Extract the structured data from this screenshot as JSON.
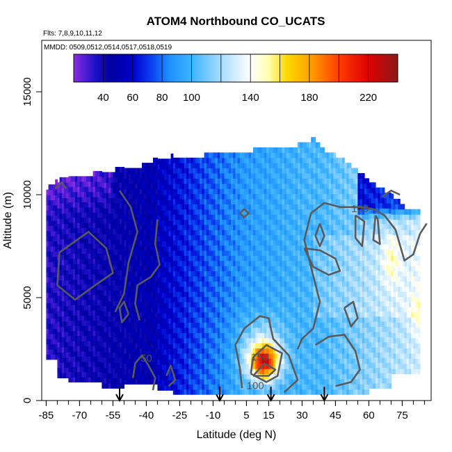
{
  "chart_data": {
    "type": "heatmap",
    "title": "ATOM4 Northbound CO_UCATS",
    "subtitle_flights": "Flts: 7,8,9,10,11,12",
    "subtitle_dates": "MMDD: 0509,0512,0514,0517,0518,0519",
    "xlabel": "Latitude (deg N)",
    "ylabel": "Altitude (m)",
    "xlim": [
      -87,
      88
    ],
    "ylim": [
      0,
      17500
    ],
    "x_ticks": [
      -85,
      -70,
      -55,
      -40,
      -25,
      -10,
      5,
      15,
      30,
      45,
      60,
      75
    ],
    "x_tick_labels": [
      "-85",
      "-70",
      "-55",
      "-40",
      "-25",
      "-10",
      "5",
      "15",
      "30",
      "45",
      "60",
      "75"
    ],
    "y_ticks": [
      0,
      5000,
      10000,
      15000
    ],
    "y_tick_labels": [
      "0",
      "5000",
      "10000",
      "15000"
    ],
    "colorbar": {
      "range": [
        20,
        240
      ],
      "ticks": [
        40,
        60,
        80,
        100,
        140,
        180,
        220
      ],
      "tick_labels": [
        "40",
        "60",
        "80",
        "100",
        "140",
        "180",
        "220"
      ],
      "stops": [
        {
          "value": 20,
          "color": "#8a2be2"
        },
        {
          "value": 35,
          "color": "#1c10c8"
        },
        {
          "value": 45,
          "color": "#0000a0"
        },
        {
          "value": 60,
          "color": "#0000cc"
        },
        {
          "value": 72,
          "color": "#0a3cf0"
        },
        {
          "value": 85,
          "color": "#1e90ff"
        },
        {
          "value": 100,
          "color": "#3cb4ff"
        },
        {
          "value": 120,
          "color": "#a8dcff"
        },
        {
          "value": 140,
          "color": "#ffffff"
        },
        {
          "value": 152,
          "color": "#ffffb0"
        },
        {
          "value": 165,
          "color": "#ffd700"
        },
        {
          "value": 180,
          "color": "#ffa500"
        },
        {
          "value": 200,
          "color": "#ff3c00"
        },
        {
          "value": 220,
          "color": "#e00000"
        },
        {
          "value": 240,
          "color": "#8b1a1a"
        }
      ]
    },
    "contour_labels": [
      {
        "text": "50",
        "lat": -40,
        "alt": 1900
      },
      {
        "text": "100",
        "lat": 9,
        "alt": 550
      },
      {
        "text": "150",
        "lat": 11,
        "alt": 1950
      },
      {
        "text": "100",
        "lat": 56,
        "alt": 9150
      }
    ],
    "profile_markers_lat": [
      -52,
      -7,
      16,
      40
    ],
    "column_extent": [
      {
        "lat": -85,
        "top": 10200
      },
      {
        "lat": -80,
        "top": 10600
      },
      {
        "lat": -75,
        "top": 10800
      },
      {
        "lat": -65,
        "top": 10900
      },
      {
        "lat": -55,
        "top": 11100
      },
      {
        "lat": -45,
        "top": 11200
      },
      {
        "lat": -35,
        "top": 11700
      },
      {
        "lat": -25,
        "top": 11800
      },
      {
        "lat": -15,
        "top": 11800
      },
      {
        "lat": -5,
        "top": 12000
      },
      {
        "lat": 5,
        "top": 12000
      },
      {
        "lat": 15,
        "top": 12200
      },
      {
        "lat": 25,
        "top": 12200
      },
      {
        "lat": 30,
        "top": 12400
      },
      {
        "lat": 35,
        "top": 12600
      },
      {
        "lat": 40,
        "top": 12000
      },
      {
        "lat": 45,
        "top": 11800
      },
      {
        "lat": 55,
        "top": 11000
      },
      {
        "lat": 62,
        "top": 10400
      },
      {
        "lat": 70,
        "top": 9900
      },
      {
        "lat": 76,
        "top": 9300
      },
      {
        "lat": 82,
        "top": 9100
      }
    ]
  }
}
